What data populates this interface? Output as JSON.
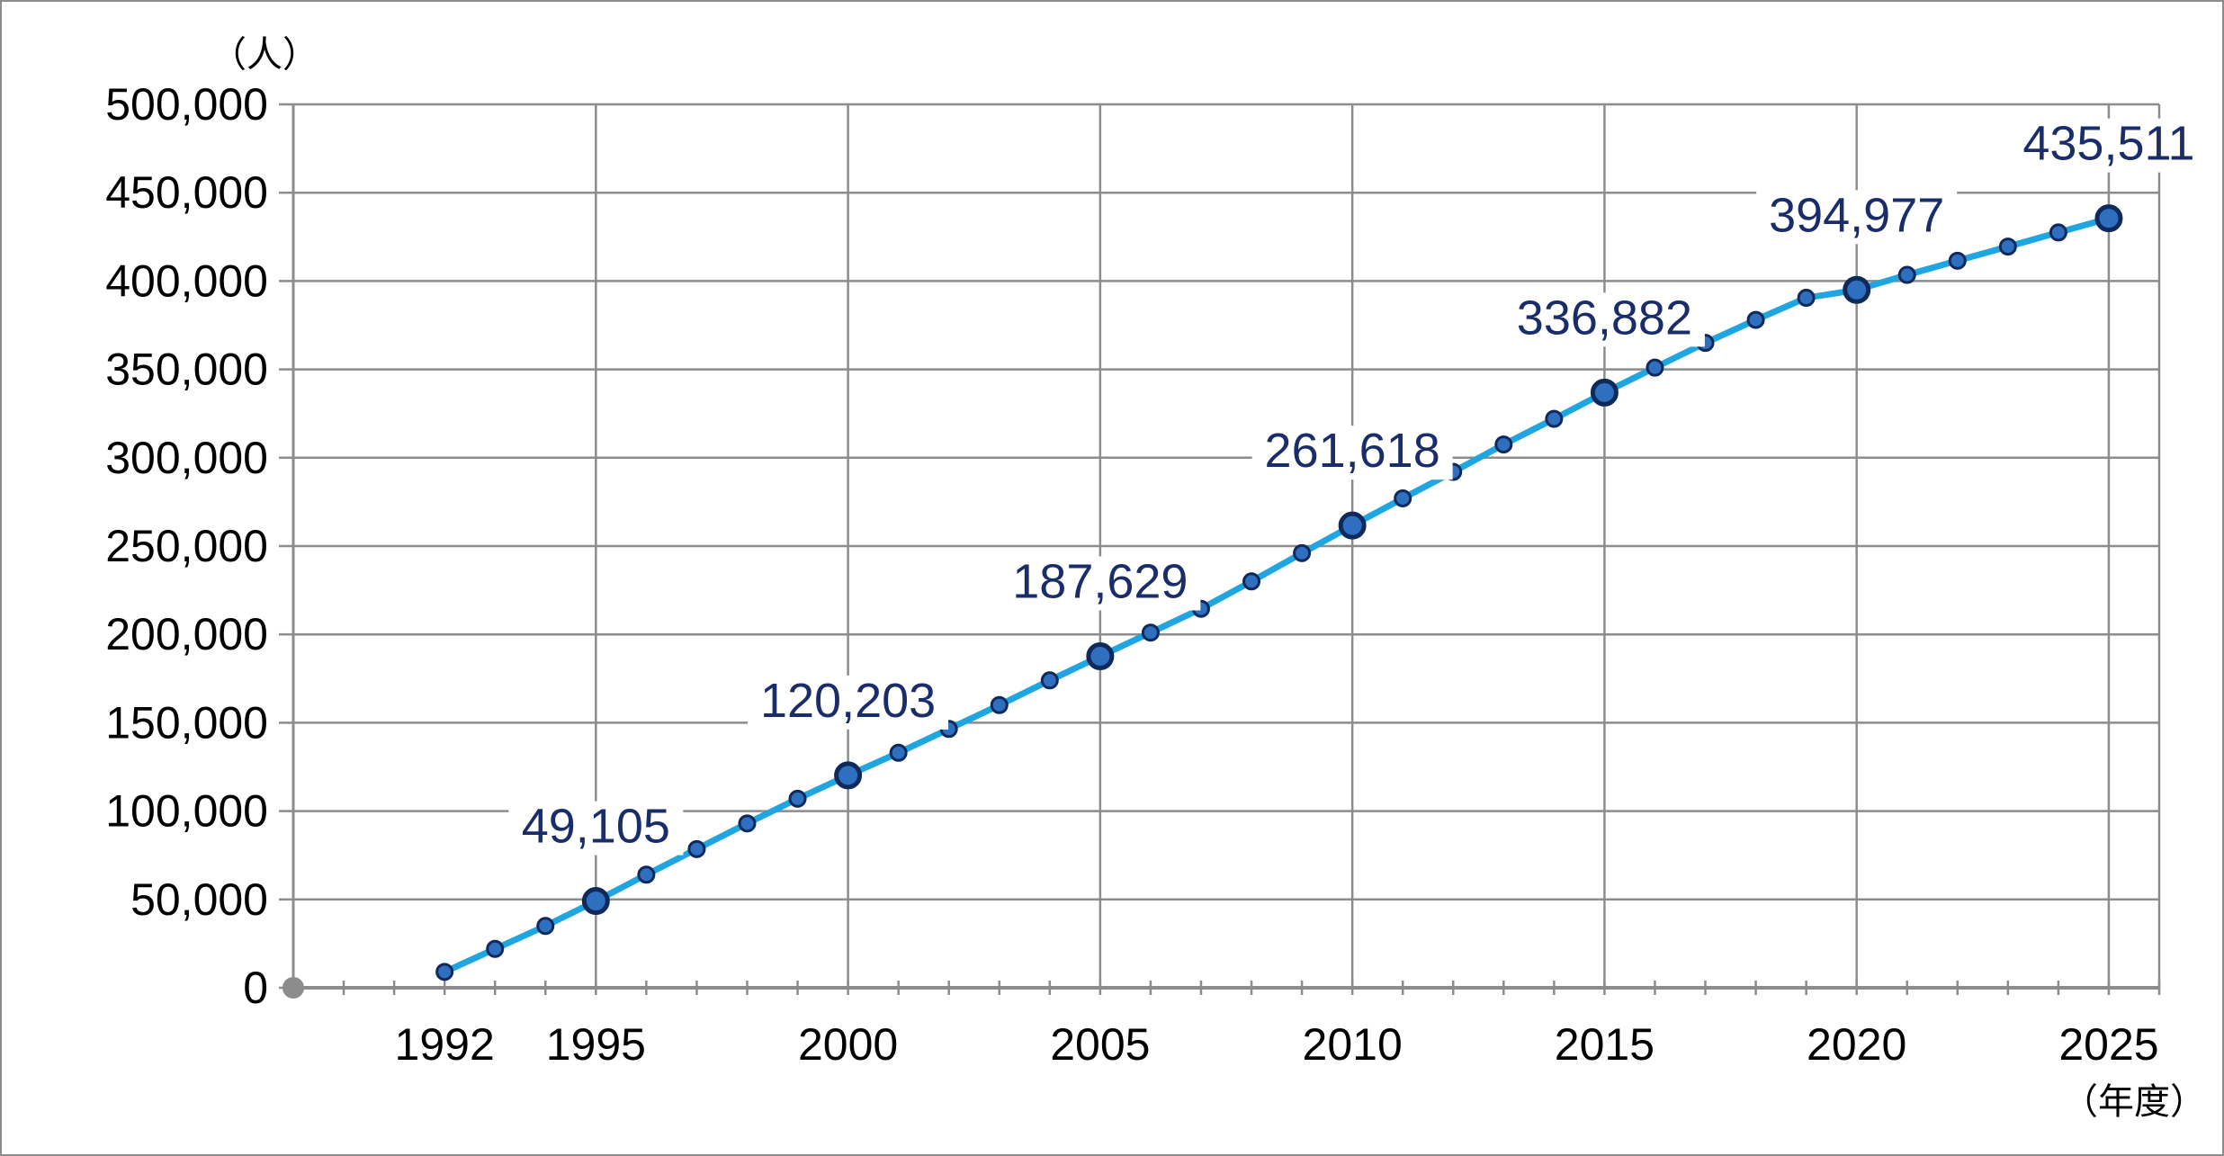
{
  "chart_data": {
    "type": "line",
    "y_unit": "（人）",
    "x_unit": "（年度）",
    "ylim": [
      0,
      500000
    ],
    "y_ticks": [
      0,
      50000,
      100000,
      150000,
      200000,
      250000,
      300000,
      350000,
      400000,
      450000,
      500000
    ],
    "y_tick_labels": [
      "0",
      "50,000",
      "100,000",
      "150,000",
      "200,000",
      "250,000",
      "300,000",
      "350,000",
      "400,000",
      "450,000",
      "500,000"
    ],
    "xlim": [
      1989,
      2026
    ],
    "x_tick_labels": [
      "1992",
      "1995",
      "2000",
      "2005",
      "2010",
      "2015",
      "2020",
      "2025"
    ],
    "x_tick_values": [
      1992,
      1995,
      2000,
      2005,
      2010,
      2015,
      2020,
      2025
    ],
    "grid": true,
    "line_color": "#1fa6e0",
    "marker_color": "#2f6fc0",
    "label_color": "#1a2d6b",
    "series": [
      {
        "x": [
          1992,
          1993,
          1994,
          1995,
          1996,
          1997,
          1998,
          1999,
          2000,
          2001,
          2002,
          2003,
          2004,
          2005,
          2006,
          2007,
          2008,
          2009,
          2010,
          2011,
          2012,
          2013,
          2014,
          2015,
          2016,
          2017,
          2018,
          2019,
          2020,
          2021,
          2022,
          2023,
          2024,
          2025
        ],
        "values": [
          9000,
          22000,
          35000,
          49105,
          64000,
          78500,
          93000,
          107000,
          120203,
          133000,
          146500,
          160000,
          174000,
          187629,
          201000,
          214500,
          230000,
          246000,
          261618,
          277000,
          292000,
          307500,
          322000,
          336882,
          351000,
          365000,
          378000,
          390500,
          394977,
          403500,
          411500,
          419500,
          427500,
          435511
        ]
      }
    ],
    "labeled_points": [
      {
        "x": 1995,
        "value": 49105,
        "text": "49,105"
      },
      {
        "x": 2000,
        "value": 120203,
        "text": "120,203"
      },
      {
        "x": 2005,
        "value": 187629,
        "text": "187,629"
      },
      {
        "x": 2010,
        "value": 261618,
        "text": "261,618"
      },
      {
        "x": 2015,
        "value": 336882,
        "text": "336,882"
      },
      {
        "x": 2020,
        "value": 394977,
        "text": "394,977"
      },
      {
        "x": 2025,
        "value": 435511,
        "text": "435,511"
      }
    ]
  }
}
